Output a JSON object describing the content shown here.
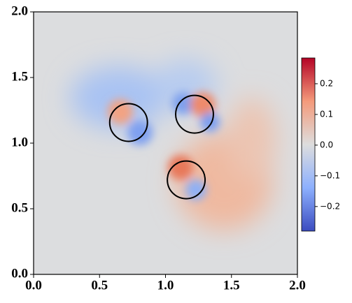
{
  "chart_data": {
    "type": "field",
    "xlim": [
      0,
      2
    ],
    "ylim": [
      0,
      2
    ],
    "xticks": [
      {
        "value": 0,
        "label": "0.0"
      },
      0.5,
      {
        "value": 1,
        "label": "1.0"
      },
      1.5,
      {
        "value": 2,
        "label": "2.0"
      }
    ],
    "yticks": [
      {
        "value": 0,
        "label": "0.0"
      },
      0.5,
      {
        "value": 1,
        "label": "1.0"
      },
      1.5,
      {
        "value": 2,
        "label": "2.0"
      }
    ],
    "circles": {
      "x": [
        0.72,
        1.22,
        1.157
      ],
      "y": [
        1.157,
        1.22,
        0.72
      ],
      "r": [
        0.143,
        0.143,
        0.143
      ],
      "color": "#000000"
    },
    "colorbar": {
      "lim": [
        -0.28,
        0.284
      ],
      "ticks": [
        {
          "value": -0.2,
          "label": "−0.2"
        },
        {
          "value": -0.1,
          "label": "−0.1"
        },
        {
          "value": 0,
          "label": "0.0"
        },
        0.1,
        0.2
      ],
      "colormap": [
        "#3b4cc0",
        "#8db0fe",
        "#dddddd",
        "#f49a7b",
        "#b40426"
      ]
    }
  }
}
